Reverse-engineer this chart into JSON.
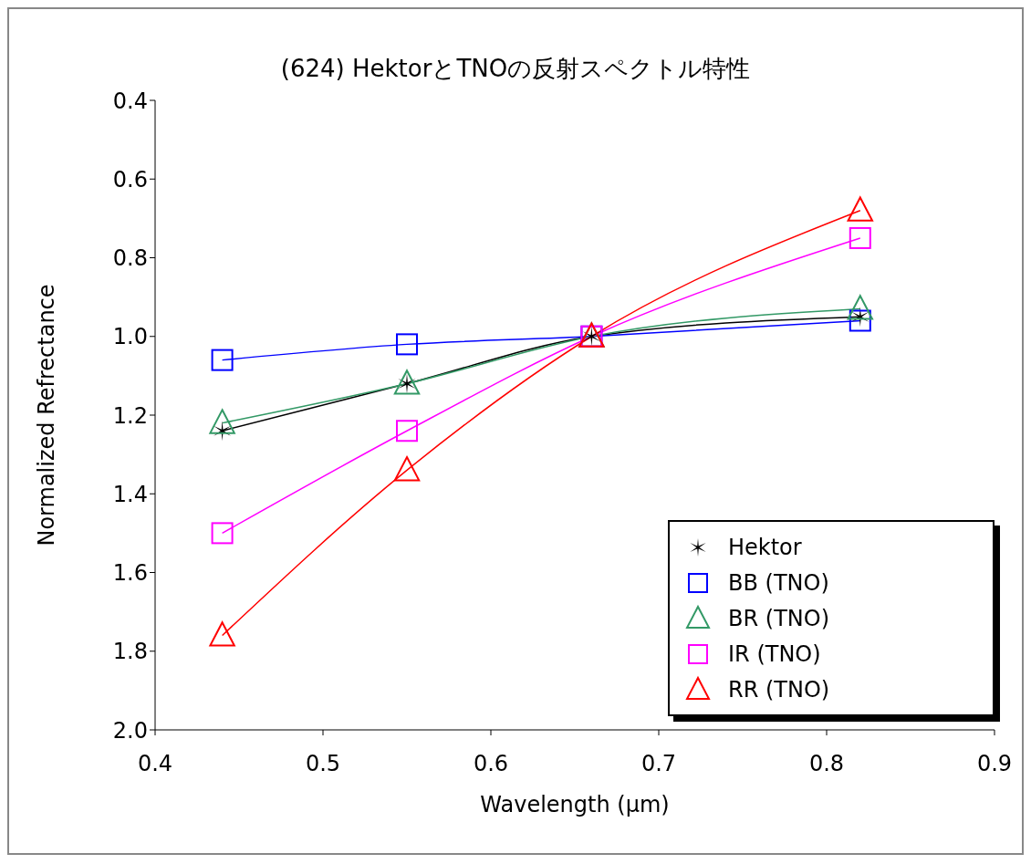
{
  "chart_data": {
    "type": "line",
    "title": "(624) HektorとTNOの反射スペクトル特性",
    "xlabel": "Wavelength (μm)",
    "ylabel": "Normalized Refrectance",
    "x": [
      0.44,
      0.55,
      0.66,
      0.82
    ],
    "series": [
      {
        "name": "Hektor",
        "color": "#000000",
        "marker": "cross",
        "values": [
          1.24,
          1.12,
          1.0,
          0.95
        ]
      },
      {
        "name": "BB (TNO)",
        "color": "#0000ff",
        "marker": "square",
        "values": [
          1.06,
          1.02,
          1.0,
          0.96
        ]
      },
      {
        "name": "BR (TNO)",
        "color": "#339966",
        "marker": "triangle",
        "values": [
          1.22,
          1.12,
          1.0,
          0.93
        ]
      },
      {
        "name": "IR (TNO)",
        "color": "#ff00ff",
        "marker": "square",
        "values": [
          1.5,
          1.24,
          1.0,
          0.75
        ]
      },
      {
        "name": "RR (TNO)",
        "color": "#ff0000",
        "marker": "triangle",
        "values": [
          1.76,
          1.34,
          1.0,
          0.68
        ]
      }
    ],
    "xlim": [
      0.4,
      0.9
    ],
    "xticks": [
      0.4,
      0.5,
      0.6,
      0.7,
      0.8,
      0.9
    ],
    "ylim": [
      2.0,
      0.4
    ],
    "yticks": [
      0.4,
      0.6,
      0.8,
      {
        "value": 1,
        "label": "1.0"
      },
      1.2,
      1.4,
      1.6,
      1.8,
      {
        "value": 2,
        "label": "2.0"
      }
    ],
    "grid": false,
    "legend": "bottom right",
    "line_style": "solid"
  }
}
